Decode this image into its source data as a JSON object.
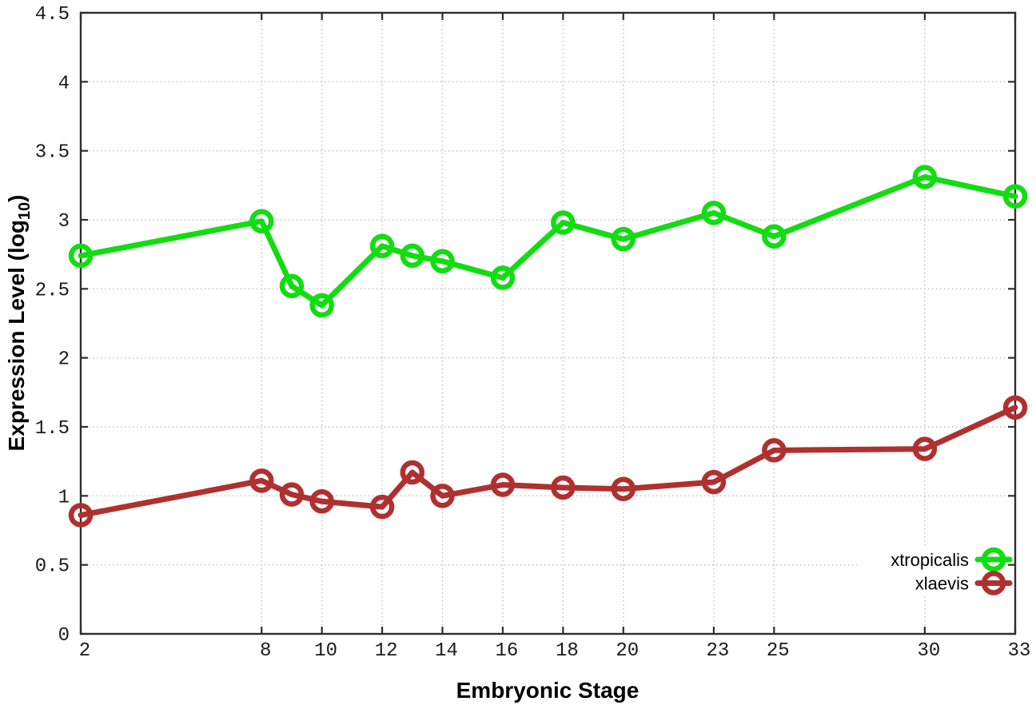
{
  "chart_data": {
    "type": "line",
    "title": "",
    "xlabel": "Embryonic Stage",
    "ylabel": "Expression Level (log10)",
    "ylabel_parts": {
      "prefix": "Expression Level (log",
      "subscript": "10",
      "suffix": ")"
    },
    "x": [
      2,
      8,
      9,
      10,
      12,
      13,
      14,
      16,
      18,
      20,
      23,
      25,
      30,
      33
    ],
    "series": [
      {
        "name": "xtropicalis",
        "color": "#12dc12",
        "values": [
          2.74,
          2.99,
          2.52,
          2.38,
          2.81,
          2.74,
          2.7,
          2.58,
          2.98,
          2.86,
          3.05,
          2.88,
          3.31,
          3.17
        ]
      },
      {
        "name": "xlaevis",
        "color": "#b03030",
        "values": [
          0.86,
          1.11,
          1.01,
          0.96,
          0.92,
          1.17,
          1.0,
          1.08,
          1.06,
          1.05,
          1.1,
          1.33,
          1.34,
          1.64
        ]
      }
    ],
    "xticks": [
      2,
      8,
      10,
      12,
      14,
      16,
      18,
      20,
      23,
      25,
      30,
      33
    ],
    "yticks": [
      0,
      0.5,
      1,
      1.5,
      2,
      2.5,
      3,
      3.5,
      4,
      4.5
    ],
    "xlim": [
      2,
      33
    ],
    "ylim": [
      0,
      4.5
    ],
    "grid": true,
    "legend_position": "bottom-right",
    "marker": "open-circle",
    "colors": {
      "border": "#2e2e2e",
      "grid": "#bfbfbf",
      "background": "#ffffff",
      "tick_text": "#1a1a1a"
    }
  }
}
